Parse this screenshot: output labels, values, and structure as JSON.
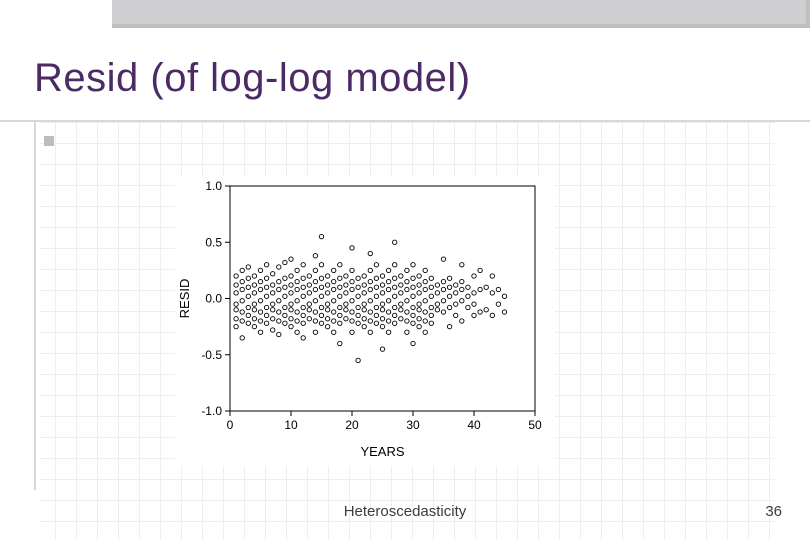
{
  "slide": {
    "title": "Resid (of log-log model)",
    "footer": "Heteroscedasticity",
    "page_number": "36",
    "title_color": "#4c2a66",
    "title_fontsize": 40,
    "footer_fontsize": 15,
    "grid_color": "#eeeeee",
    "background_color": "#ffffff",
    "topbar_color": "#cfcfd1"
  },
  "chart": {
    "type": "scatter",
    "xlabel": "YEARS",
    "ylabel": "RESID",
    "label_fontsize": 13,
    "tick_fontsize": 12,
    "xlim": [
      0,
      50
    ],
    "ylim": [
      -1.0,
      1.0
    ],
    "xticks": [
      0,
      10,
      20,
      30,
      40,
      50
    ],
    "yticks": [
      -1.0,
      -0.5,
      0.0,
      0.5,
      1.0
    ],
    "xticklabels": [
      "0",
      "10",
      "20",
      "30",
      "40",
      "50"
    ],
    "yticklabels": [
      "-1.0",
      "-0.5",
      "0.0",
      "0.5",
      "1.0"
    ],
    "axis_color": "#000000",
    "marker_shape": "circle",
    "marker_size": 2.2,
    "marker_stroke": "#000000",
    "marker_fill": "none",
    "plot_bg": "#ffffff",
    "data": [
      [
        1,
        0.05
      ],
      [
        1,
        0.12
      ],
      [
        1,
        -0.05
      ],
      [
        1,
        -0.1
      ],
      [
        1,
        -0.18
      ],
      [
        1,
        0.2
      ],
      [
        1,
        -0.25
      ],
      [
        2,
        0.08
      ],
      [
        2,
        -0.02
      ],
      [
        2,
        0.15
      ],
      [
        2,
        -0.12
      ],
      [
        2,
        -0.2
      ],
      [
        2,
        0.25
      ],
      [
        2,
        -0.35
      ],
      [
        3,
        0.1
      ],
      [
        3,
        0.02
      ],
      [
        3,
        -0.08
      ],
      [
        3,
        0.18
      ],
      [
        3,
        -0.15
      ],
      [
        3,
        -0.22
      ],
      [
        3,
        0.28
      ],
      [
        4,
        0.05
      ],
      [
        4,
        -0.05
      ],
      [
        4,
        0.12
      ],
      [
        4,
        -0.1
      ],
      [
        4,
        -0.18
      ],
      [
        4,
        0.2
      ],
      [
        4,
        -0.25
      ],
      [
        5,
        0.08
      ],
      [
        5,
        -0.02
      ],
      [
        5,
        0.15
      ],
      [
        5,
        -0.12
      ],
      [
        5,
        -0.2
      ],
      [
        5,
        0.25
      ],
      [
        5,
        -0.3
      ],
      [
        6,
        0.1
      ],
      [
        6,
        0.02
      ],
      [
        6,
        -0.08
      ],
      [
        6,
        0.18
      ],
      [
        6,
        -0.15
      ],
      [
        6,
        -0.22
      ],
      [
        6,
        0.3
      ],
      [
        7,
        0.05
      ],
      [
        7,
        -0.05
      ],
      [
        7,
        0.12
      ],
      [
        7,
        -0.1
      ],
      [
        7,
        -0.18
      ],
      [
        7,
        0.22
      ],
      [
        7,
        -0.28
      ],
      [
        8,
        0.08
      ],
      [
        8,
        -0.02
      ],
      [
        8,
        0.15
      ],
      [
        8,
        -0.12
      ],
      [
        8,
        -0.2
      ],
      [
        8,
        0.28
      ],
      [
        8,
        -0.32
      ],
      [
        9,
        0.1
      ],
      [
        9,
        0.02
      ],
      [
        9,
        -0.08
      ],
      [
        9,
        0.18
      ],
      [
        9,
        -0.15
      ],
      [
        9,
        -0.22
      ],
      [
        9,
        0.32
      ],
      [
        10,
        0.05
      ],
      [
        10,
        -0.05
      ],
      [
        10,
        0.12
      ],
      [
        10,
        -0.1
      ],
      [
        10,
        -0.18
      ],
      [
        10,
        0.2
      ],
      [
        10,
        -0.25
      ],
      [
        10,
        0.35
      ],
      [
        11,
        0.08
      ],
      [
        11,
        -0.02
      ],
      [
        11,
        0.15
      ],
      [
        11,
        -0.12
      ],
      [
        11,
        -0.2
      ],
      [
        11,
        0.25
      ],
      [
        11,
        -0.3
      ],
      [
        12,
        0.1
      ],
      [
        12,
        0.02
      ],
      [
        12,
        -0.08
      ],
      [
        12,
        0.18
      ],
      [
        12,
        -0.15
      ],
      [
        12,
        -0.22
      ],
      [
        12,
        0.3
      ],
      [
        12,
        -0.35
      ],
      [
        13,
        0.05
      ],
      [
        13,
        -0.05
      ],
      [
        13,
        0.12
      ],
      [
        13,
        -0.1
      ],
      [
        13,
        -0.18
      ],
      [
        13,
        0.2
      ],
      [
        14,
        0.08
      ],
      [
        14,
        -0.02
      ],
      [
        14,
        0.15
      ],
      [
        14,
        -0.12
      ],
      [
        14,
        -0.2
      ],
      [
        14,
        0.25
      ],
      [
        14,
        -0.3
      ],
      [
        14,
        0.38
      ],
      [
        15,
        0.1
      ],
      [
        15,
        0.02
      ],
      [
        15,
        -0.08
      ],
      [
        15,
        0.18
      ],
      [
        15,
        -0.15
      ],
      [
        15,
        -0.22
      ],
      [
        15,
        0.3
      ],
      [
        15,
        0.55
      ],
      [
        16,
        0.05
      ],
      [
        16,
        -0.05
      ],
      [
        16,
        0.12
      ],
      [
        16,
        -0.1
      ],
      [
        16,
        -0.18
      ],
      [
        16,
        0.2
      ],
      [
        16,
        -0.25
      ],
      [
        17,
        0.08
      ],
      [
        17,
        -0.02
      ],
      [
        17,
        0.15
      ],
      [
        17,
        -0.12
      ],
      [
        17,
        -0.2
      ],
      [
        17,
        0.25
      ],
      [
        17,
        -0.3
      ],
      [
        18,
        0.1
      ],
      [
        18,
        0.02
      ],
      [
        18,
        -0.08
      ],
      [
        18,
        0.18
      ],
      [
        18,
        -0.15
      ],
      [
        18,
        -0.22
      ],
      [
        18,
        0.3
      ],
      [
        18,
        -0.4
      ],
      [
        19,
        0.05
      ],
      [
        19,
        -0.05
      ],
      [
        19,
        0.12
      ],
      [
        19,
        -0.1
      ],
      [
        19,
        -0.18
      ],
      [
        19,
        0.2
      ],
      [
        20,
        0.08
      ],
      [
        20,
        -0.02
      ],
      [
        20,
        0.15
      ],
      [
        20,
        -0.12
      ],
      [
        20,
        -0.2
      ],
      [
        20,
        0.25
      ],
      [
        20,
        -0.3
      ],
      [
        20,
        0.45
      ],
      [
        21,
        0.1
      ],
      [
        21,
        0.02
      ],
      [
        21,
        -0.08
      ],
      [
        21,
        0.18
      ],
      [
        21,
        -0.15
      ],
      [
        21,
        -0.22
      ],
      [
        21,
        -0.55
      ],
      [
        22,
        0.05
      ],
      [
        22,
        -0.05
      ],
      [
        22,
        0.12
      ],
      [
        22,
        -0.1
      ],
      [
        22,
        -0.18
      ],
      [
        22,
        0.2
      ],
      [
        22,
        -0.25
      ],
      [
        23,
        0.08
      ],
      [
        23,
        -0.02
      ],
      [
        23,
        0.15
      ],
      [
        23,
        -0.12
      ],
      [
        23,
        -0.2
      ],
      [
        23,
        0.25
      ],
      [
        23,
        -0.3
      ],
      [
        23,
        0.4
      ],
      [
        24,
        0.1
      ],
      [
        24,
        0.02
      ],
      [
        24,
        -0.08
      ],
      [
        24,
        0.18
      ],
      [
        24,
        -0.15
      ],
      [
        24,
        -0.22
      ],
      [
        24,
        0.3
      ],
      [
        25,
        0.05
      ],
      [
        25,
        -0.05
      ],
      [
        25,
        0.12
      ],
      [
        25,
        -0.1
      ],
      [
        25,
        -0.18
      ],
      [
        25,
        0.2
      ],
      [
        25,
        -0.25
      ],
      [
        25,
        -0.45
      ],
      [
        26,
        0.08
      ],
      [
        26,
        -0.02
      ],
      [
        26,
        0.15
      ],
      [
        26,
        -0.12
      ],
      [
        26,
        -0.2
      ],
      [
        26,
        0.25
      ],
      [
        26,
        -0.3
      ],
      [
        27,
        0.1
      ],
      [
        27,
        0.02
      ],
      [
        27,
        -0.08
      ],
      [
        27,
        0.18
      ],
      [
        27,
        -0.15
      ],
      [
        27,
        -0.22
      ],
      [
        27,
        0.3
      ],
      [
        27,
        0.5
      ],
      [
        28,
        0.05
      ],
      [
        28,
        -0.05
      ],
      [
        28,
        0.12
      ],
      [
        28,
        -0.1
      ],
      [
        28,
        -0.18
      ],
      [
        28,
        0.2
      ],
      [
        29,
        0.08
      ],
      [
        29,
        -0.02
      ],
      [
        29,
        0.15
      ],
      [
        29,
        -0.12
      ],
      [
        29,
        -0.2
      ],
      [
        29,
        0.25
      ],
      [
        29,
        -0.3
      ],
      [
        30,
        0.1
      ],
      [
        30,
        0.02
      ],
      [
        30,
        -0.08
      ],
      [
        30,
        0.18
      ],
      [
        30,
        -0.15
      ],
      [
        30,
        -0.22
      ],
      [
        30,
        0.3
      ],
      [
        30,
        -0.4
      ],
      [
        31,
        0.05
      ],
      [
        31,
        -0.05
      ],
      [
        31,
        0.12
      ],
      [
        31,
        -0.1
      ],
      [
        31,
        -0.18
      ],
      [
        31,
        0.2
      ],
      [
        31,
        -0.25
      ],
      [
        32,
        0.08
      ],
      [
        32,
        -0.02
      ],
      [
        32,
        0.15
      ],
      [
        32,
        -0.12
      ],
      [
        32,
        -0.2
      ],
      [
        32,
        0.25
      ],
      [
        32,
        -0.3
      ],
      [
        33,
        0.1
      ],
      [
        33,
        0.02
      ],
      [
        33,
        -0.08
      ],
      [
        33,
        0.18
      ],
      [
        33,
        -0.15
      ],
      [
        33,
        -0.22
      ],
      [
        34,
        0.05
      ],
      [
        34,
        -0.05
      ],
      [
        34,
        0.12
      ],
      [
        34,
        -0.1
      ],
      [
        35,
        0.08
      ],
      [
        35,
        -0.02
      ],
      [
        35,
        0.15
      ],
      [
        35,
        -0.12
      ],
      [
        35,
        0.35
      ],
      [
        36,
        0.1
      ],
      [
        36,
        0.02
      ],
      [
        36,
        -0.08
      ],
      [
        36,
        0.18
      ],
      [
        36,
        -0.25
      ],
      [
        37,
        0.05
      ],
      [
        37,
        -0.05
      ],
      [
        37,
        0.12
      ],
      [
        37,
        -0.15
      ],
      [
        38,
        0.08
      ],
      [
        38,
        -0.02
      ],
      [
        38,
        0.15
      ],
      [
        38,
        -0.2
      ],
      [
        38,
        0.3
      ],
      [
        39,
        0.1
      ],
      [
        39,
        0.02
      ],
      [
        39,
        -0.08
      ],
      [
        40,
        0.05
      ],
      [
        40,
        -0.05
      ],
      [
        40,
        0.2
      ],
      [
        40,
        -0.15
      ],
      [
        41,
        0.08
      ],
      [
        41,
        -0.12
      ],
      [
        41,
        0.25
      ],
      [
        42,
        0.1
      ],
      [
        42,
        -0.1
      ],
      [
        43,
        0.05
      ],
      [
        43,
        -0.15
      ],
      [
        43,
        0.2
      ],
      [
        44,
        0.08
      ],
      [
        44,
        -0.05
      ],
      [
        45,
        0.02
      ],
      [
        45,
        -0.12
      ]
    ]
  }
}
